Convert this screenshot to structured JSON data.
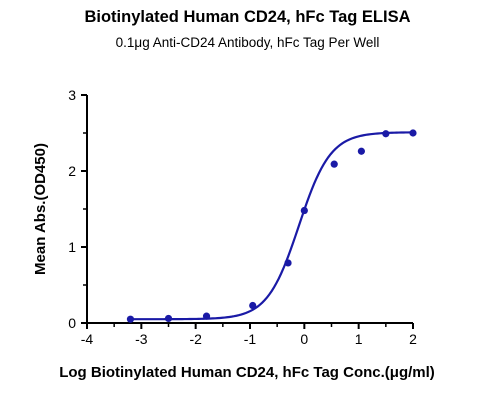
{
  "chart_data": {
    "type": "scatter",
    "title": "Biotinylated Human CD24, hFc Tag ELISA",
    "subtitle": "0.1μg Anti-CD24 Antibody, hFc Tag Per Well",
    "xlabel": "Log Biotinylated Human CD24, hFc Tag Conc.(μg/ml)",
    "ylabel": "Mean Abs.(OD450)",
    "xlim": [
      -4,
      2
    ],
    "ylim": [
      0,
      3
    ],
    "x_ticks": [
      "-4",
      "-3",
      "-2",
      "-1",
      "0",
      "1",
      "2"
    ],
    "y_ticks": [
      "0",
      "1",
      "2",
      "3"
    ],
    "grid": false,
    "legend": "none",
    "series": [
      {
        "points": [
          {
            "x": -3.2,
            "y": 0.05
          },
          {
            "x": -2.5,
            "y": 0.06
          },
          {
            "x": -1.8,
            "y": 0.09
          },
          {
            "x": -0.95,
            "y": 0.23
          },
          {
            "x": -0.3,
            "y": 0.79
          },
          {
            "x": 0.0,
            "y": 1.48
          },
          {
            "x": 0.55,
            "y": 2.09
          },
          {
            "x": 1.05,
            "y": 2.26
          },
          {
            "x": 1.5,
            "y": 2.49
          },
          {
            "x": 2.0,
            "y": 2.5
          }
        ],
        "fit": {
          "model": "four-parameter logistic",
          "bottom": 0.05,
          "top": 2.51,
          "log_ec50": -0.1,
          "hill_slope": 1.5
        },
        "color": "#1a1aa6"
      }
    ]
  }
}
